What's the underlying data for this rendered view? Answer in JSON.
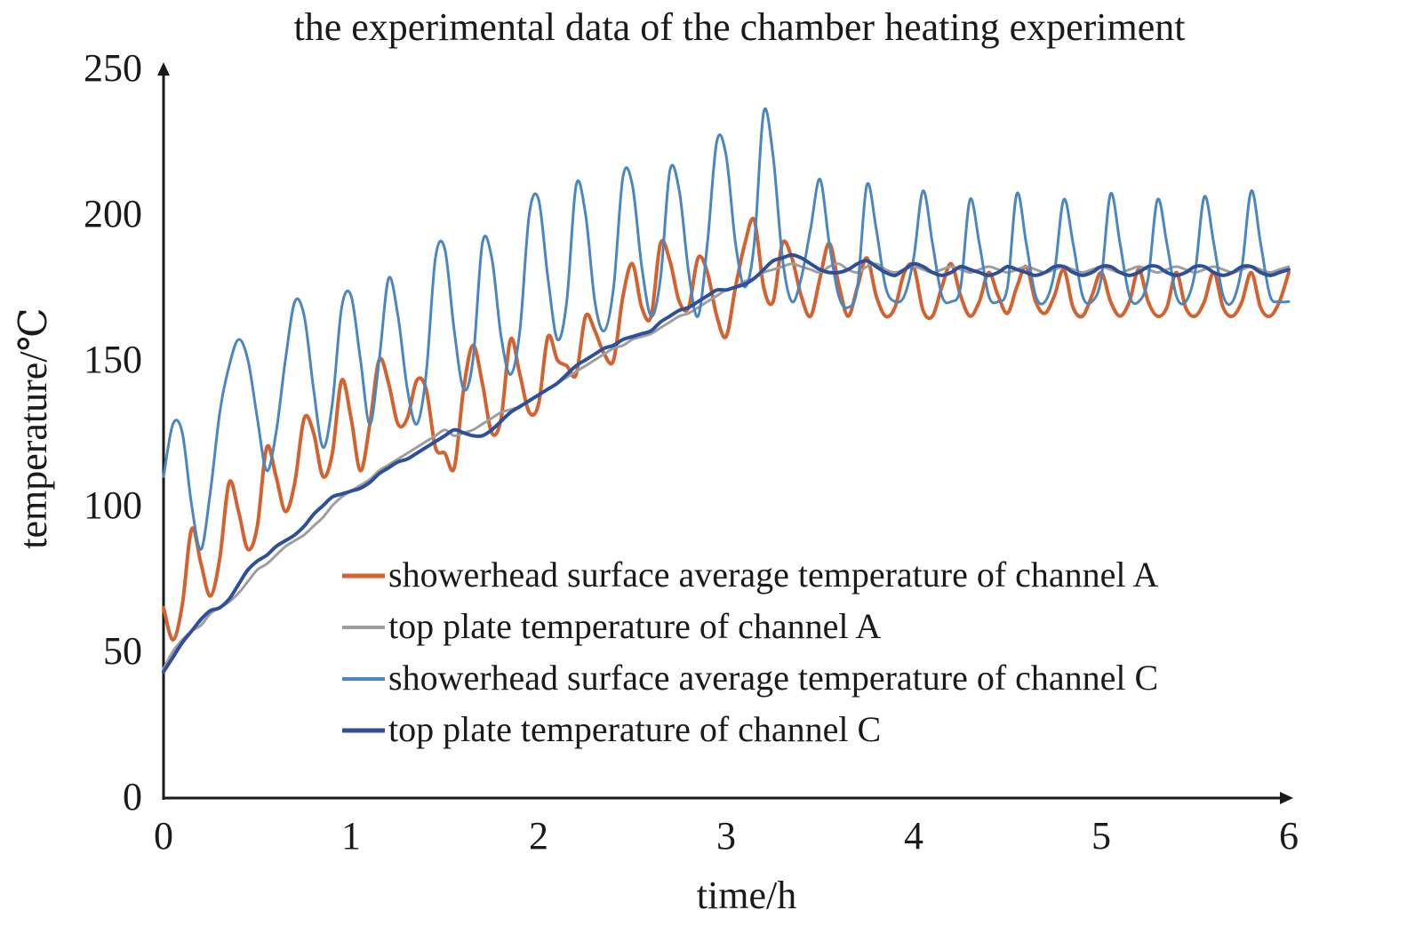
{
  "chart_data": {
    "type": "line",
    "title": "the experimental data of the chamber heating experiment",
    "xlabel": "time/h",
    "ylabel": "temperature/℃",
    "xlim": [
      0,
      6
    ],
    "ylim": [
      0,
      250
    ],
    "x_ticks": [
      "0",
      "1",
      "2",
      "3",
      "4",
      "5",
      "6"
    ],
    "y_ticks": [
      "0",
      "50",
      "100",
      "150",
      "200",
      "250"
    ],
    "grid": false,
    "legend_position": "bottom-right",
    "x": [
      0.0,
      0.05,
      0.1,
      0.15,
      0.2,
      0.25,
      0.3,
      0.35,
      0.4,
      0.45,
      0.5,
      0.55,
      0.6,
      0.65,
      0.7,
      0.75,
      0.8,
      0.85,
      0.9,
      0.95,
      1.0,
      1.05,
      1.1,
      1.15,
      1.2,
      1.25,
      1.3,
      1.35,
      1.4,
      1.45,
      1.5,
      1.55,
      1.6,
      1.65,
      1.7,
      1.75,
      1.8,
      1.85,
      1.9,
      1.95,
      2.0,
      2.05,
      2.1,
      2.15,
      2.2,
      2.25,
      2.3,
      2.35,
      2.4,
      2.45,
      2.5,
      2.55,
      2.6,
      2.65,
      2.7,
      2.75,
      2.8,
      2.85,
      2.9,
      2.95,
      3.0,
      3.05,
      3.1,
      3.15,
      3.2,
      3.25,
      3.3,
      3.35,
      3.4,
      3.45,
      3.5,
      3.55,
      3.6,
      3.65,
      3.7,
      3.75,
      3.8,
      3.85,
      3.9,
      3.95,
      4.0,
      4.05,
      4.1,
      4.15,
      4.2,
      4.25,
      4.3,
      4.35,
      4.4,
      4.45,
      4.5,
      4.55,
      4.6,
      4.65,
      4.7,
      4.75,
      4.8,
      4.85,
      4.9,
      4.95,
      5.0,
      5.05,
      5.1,
      5.15,
      5.2,
      5.25,
      5.3,
      5.35,
      5.4,
      5.45,
      5.5,
      5.55,
      5.6,
      5.65,
      5.7,
      5.75,
      5.8,
      5.85,
      5.9,
      5.95,
      6.0
    ],
    "series": [
      {
        "name": "showerhead surface average temperature of channel A",
        "color": "#d4622f",
        "width": 4,
        "values": [
          65,
          54,
          66,
          92,
          80,
          69,
          82,
          108,
          98,
          85,
          93,
          120,
          110,
          98,
          108,
          130,
          125,
          110,
          118,
          143,
          130,
          112,
          128,
          150,
          142,
          128,
          130,
          143,
          140,
          120,
          118,
          113,
          140,
          155,
          142,
          125,
          130,
          157,
          145,
          132,
          135,
          158,
          150,
          148,
          145,
          165,
          160,
          152,
          150,
          172,
          183,
          168,
          165,
          190,
          184,
          170,
          168,
          185,
          180,
          165,
          158,
          175,
          190,
          198,
          175,
          170,
          190,
          185,
          172,
          165,
          178,
          190,
          176,
          165,
          175,
          185,
          172,
          165,
          168,
          180,
          182,
          167,
          165,
          175,
          183,
          172,
          165,
          170,
          180,
          172,
          166,
          175,
          182,
          170,
          166,
          172,
          181,
          168,
          165,
          172,
          180,
          170,
          165,
          170,
          181,
          170,
          165,
          168,
          180,
          168,
          165,
          170,
          180,
          168,
          165,
          170,
          180,
          168,
          165,
          170,
          180
        ]
      },
      {
        "name": "top plate temperature of channel A",
        "color": "#9e9e9e",
        "width": 3,
        "values": [
          44,
          50,
          54,
          57,
          59,
          63,
          65,
          67,
          70,
          74,
          78,
          80,
          83,
          86,
          88,
          90,
          93,
          96,
          100,
          103,
          105,
          107,
          109,
          112,
          114,
          116,
          118,
          120,
          122,
          124,
          126,
          124,
          125,
          126,
          128,
          130,
          132,
          133,
          134,
          136,
          138,
          140,
          142,
          144,
          146,
          148,
          150,
          152,
          154,
          155,
          157,
          158,
          159,
          161,
          163,
          165,
          166,
          168,
          170,
          172,
          174,
          175,
          177,
          178,
          180,
          181,
          182,
          183,
          182,
          181,
          180,
          182,
          183,
          181,
          180,
          182,
          183,
          181,
          180,
          181,
          182,
          181,
          180,
          181,
          182,
          181,
          180,
          181,
          182,
          181,
          180,
          181,
          182,
          181,
          180,
          181,
          182,
          181,
          180,
          181,
          182,
          181,
          180,
          181,
          182,
          181,
          180,
          181,
          182,
          181,
          180,
          181,
          182,
          181,
          180,
          181,
          182,
          181,
          180,
          181,
          182
        ]
      },
      {
        "name": "showerhead surface average temperature of channel C",
        "color": "#4a86bf",
        "width": 3,
        "values": [
          110,
          128,
          125,
          100,
          85,
          105,
          132,
          148,
          157,
          150,
          130,
          112,
          125,
          150,
          170,
          165,
          140,
          120,
          135,
          168,
          172,
          150,
          128,
          150,
          178,
          165,
          140,
          128,
          145,
          185,
          188,
          160,
          140,
          150,
          190,
          185,
          158,
          145,
          160,
          200,
          205,
          178,
          157,
          170,
          210,
          200,
          170,
          160,
          175,
          213,
          210,
          182,
          165,
          178,
          215,
          208,
          180,
          165,
          190,
          225,
          220,
          190,
          175,
          190,
          235,
          220,
          185,
          170,
          178,
          195,
          212,
          190,
          172,
          168,
          175,
          210,
          195,
          175,
          170,
          172,
          185,
          208,
          190,
          172,
          170,
          175,
          205,
          190,
          172,
          170,
          175,
          207,
          190,
          172,
          170,
          180,
          205,
          190,
          172,
          170,
          178,
          207,
          190,
          172,
          170,
          178,
          205,
          190,
          172,
          170,
          180,
          206,
          190,
          172,
          170,
          182,
          208,
          190,
          172,
          170,
          170
        ]
      },
      {
        "name": "top plate temperature of channel C",
        "color": "#2e4f9a",
        "width": 4,
        "values": [
          43,
          48,
          53,
          57,
          61,
          64,
          65,
          68,
          73,
          78,
          81,
          83,
          86,
          88,
          90,
          93,
          97,
          100,
          103,
          104,
          105,
          106,
          108,
          111,
          113,
          115,
          116,
          118,
          120,
          122,
          124,
          126,
          125,
          124,
          124,
          126,
          129,
          132,
          134,
          136,
          138,
          140,
          142,
          145,
          148,
          150,
          152,
          154,
          155,
          157,
          158,
          159,
          160,
          163,
          165,
          167,
          168,
          170,
          172,
          174,
          174,
          175,
          176,
          178,
          181,
          184,
          185,
          186,
          185,
          183,
          181,
          180,
          180,
          181,
          183,
          184,
          182,
          180,
          179,
          181,
          183,
          182,
          180,
          179,
          180,
          182,
          181,
          180,
          179,
          180,
          182,
          181,
          180,
          179,
          180,
          182,
          182,
          180,
          179,
          180,
          182,
          182,
          180,
          179,
          180,
          182,
          182,
          180,
          179,
          180,
          182,
          182,
          180,
          179,
          180,
          182,
          182,
          180,
          179,
          180,
          181
        ]
      }
    ]
  }
}
